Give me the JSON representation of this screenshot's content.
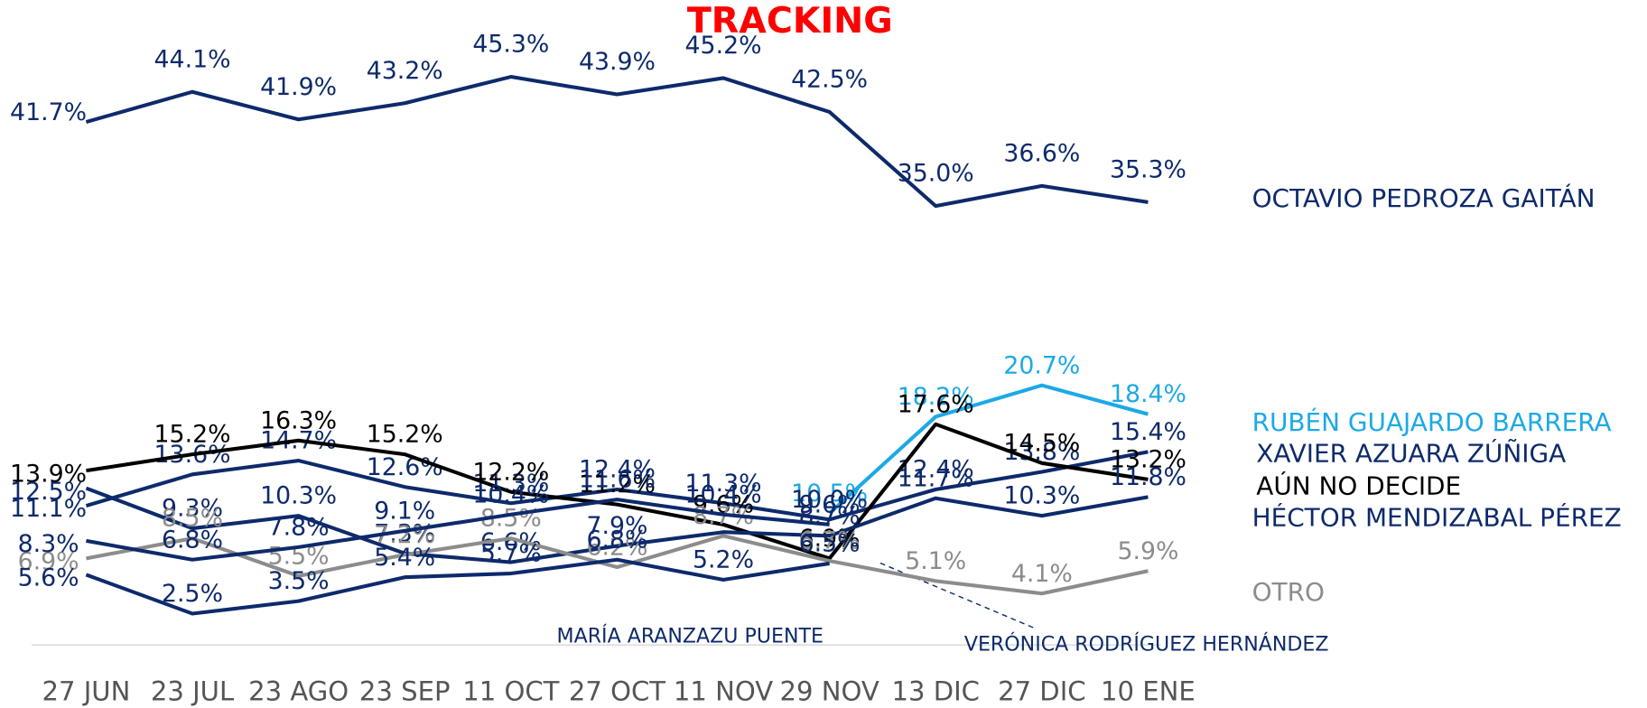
{
  "chart_data": {
    "type": "line",
    "title": "TRACKING",
    "categories": [
      "27 JUN",
      "23 JUL",
      "23 AGO",
      "23 SEP",
      "11 OCT",
      "27 OCT",
      "11 NOV",
      "29 NOV",
      "13 DIC",
      "27 DIC",
      "10 ENE"
    ],
    "ylim": [
      0,
      50
    ],
    "series": [
      {
        "name": "OCTAVIO PEDROZA GAITÁN",
        "color": "#0d2a6b",
        "values": [
          41.7,
          44.1,
          41.9,
          43.2,
          45.3,
          43.9,
          45.2,
          42.5,
          35.0,
          36.6,
          35.3
        ],
        "value_labels": [
          "41.7%",
          "44.1%",
          "41.9%",
          "43.2%",
          "45.3%",
          "43.9%",
          "45.2%",
          "42.5%",
          "35.0%",
          "36.6%",
          "35.3%"
        ]
      },
      {
        "name": "RUBÉN GUAJARDO BARRERA",
        "color": "#1ca9e6",
        "values": [
          null,
          null,
          null,
          null,
          null,
          null,
          null,
          10.5,
          18.2,
          20.7,
          18.4
        ],
        "value_labels": [
          null,
          null,
          null,
          null,
          null,
          null,
          null,
          "10.5%",
          "18.2%",
          "20.7%",
          "18.4%"
        ]
      },
      {
        "name": "XAVIER AZUARA ZÚÑIGA",
        "color": "#0d2a6b",
        "values": [
          11.1,
          13.6,
          14.7,
          12.6,
          11.3,
          12.4,
          11.3,
          10.0,
          12.4,
          13.8,
          15.4
        ],
        "value_labels": [
          "11.1%",
          "13.6%",
          "14.7%",
          "12.6%",
          "11.3%",
          "12.4%",
          "11.3%",
          "10.0%",
          "12.4%",
          "13.8%",
          "15.4%"
        ]
      },
      {
        "name": "AÚN NO DECIDE",
        "color": "#000000",
        "values": [
          13.9,
          15.2,
          16.3,
          15.2,
          12.2,
          11.2,
          9.6,
          6.9,
          17.6,
          14.5,
          13.2
        ],
        "value_labels": [
          "13.9%",
          "15.2%",
          "16.3%",
          "15.2%",
          "12.2%",
          "11.2%",
          "9.6%",
          "6.9%",
          "17.6%",
          "14.5%",
          "13.2%"
        ]
      },
      {
        "name": "HÉCTOR MENDIZABAL PÉREZ",
        "color": "#0d2a6b",
        "values": [
          12.5,
          9.3,
          10.3,
          7.3,
          6.6,
          7.9,
          9.0,
          8.7,
          11.7,
          10.3,
          11.8
        ],
        "value_labels": [
          "12.5%",
          "9.3%",
          "10.3%",
          "7.3%",
          "6.6%",
          "7.9%",
          null,
          "8.7%",
          "11.7%",
          "10.3%",
          "11.8%"
        ]
      },
      {
        "name": "OTRO",
        "color": "#8c8c8c",
        "values": [
          6.9,
          8.5,
          5.5,
          7.2,
          8.5,
          6.2,
          8.7,
          6.7,
          5.1,
          4.1,
          5.9
        ],
        "value_labels": [
          "6.9%",
          "8.5%",
          "5.5%",
          "7.2%",
          "8.5%",
          "6.2%",
          "8.7%",
          "6.7%",
          "5.1%",
          "4.1%",
          "5.9%"
        ]
      },
      {
        "name": "MARÍA ARANZAZU PUENTE",
        "color": "#0d2a6b",
        "values": [
          8.3,
          6.8,
          7.8,
          9.1,
          10.4,
          11.6,
          10.4,
          9.6,
          null,
          null,
          null
        ],
        "value_labels": [
          "8.3%",
          "6.8%",
          "7.8%",
          "9.1%",
          "10.4%",
          "11.6%",
          "10.4%",
          "9.6%",
          null,
          null,
          null
        ]
      },
      {
        "name": "VERÓNICA RODRÍGUEZ HERNÁNDEZ",
        "color": "#0d2a6b",
        "values": [
          5.6,
          2.5,
          3.5,
          5.4,
          5.7,
          6.8,
          5.2,
          6.5,
          null,
          null,
          null
        ],
        "value_labels": [
          "5.6%",
          "2.5%",
          "3.5%",
          "5.4%",
          "5.7%",
          "6.8%",
          "5.2%",
          "6.5%",
          null,
          null,
          null
        ]
      }
    ]
  }
}
